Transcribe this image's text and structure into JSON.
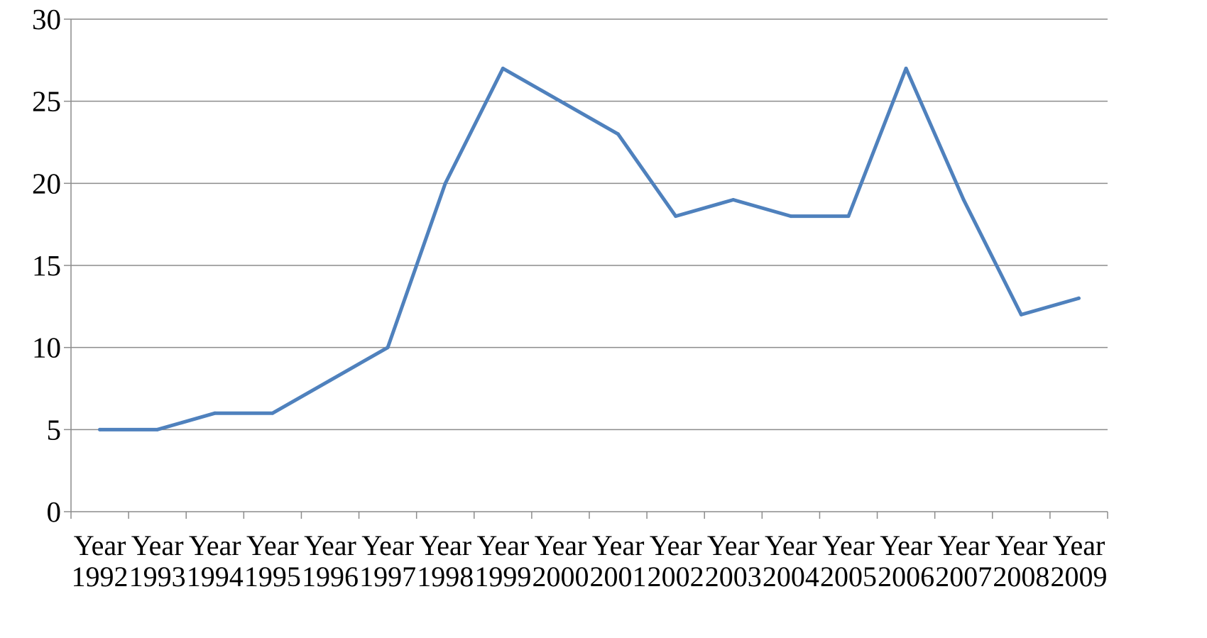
{
  "chart_data": {
    "type": "line",
    "title": "",
    "xlabel": "",
    "ylabel": "",
    "categories": [
      [
        "Year",
        "1992"
      ],
      [
        "Year",
        "1993"
      ],
      [
        "Year",
        "1994"
      ],
      [
        "Year",
        "1995"
      ],
      [
        "Year",
        "1996"
      ],
      [
        "Year",
        "1997"
      ],
      [
        "Year",
        "1998"
      ],
      [
        "Year",
        "1999"
      ],
      [
        "Year",
        "2000"
      ],
      [
        "Year",
        "2001"
      ],
      [
        "Year",
        "2002"
      ],
      [
        "Year",
        "2003"
      ],
      [
        "Year",
        "2004"
      ],
      [
        "Year",
        "2005"
      ],
      [
        "Year",
        "2006"
      ],
      [
        "Year",
        "2007"
      ],
      [
        "Year",
        "2008"
      ],
      [
        "Year",
        "2009"
      ]
    ],
    "series": [
      {
        "values": [
          5,
          5,
          6,
          6,
          8,
          10,
          20,
          27,
          25,
          23,
          18,
          19,
          18,
          18,
          27,
          19,
          12,
          13
        ],
        "color": "#4f81bd"
      }
    ],
    "ylim": [
      0,
      30
    ],
    "yticks": [
      "0",
      "5",
      "10",
      "15",
      "20",
      "25",
      "30"
    ],
    "grid": true,
    "legend": "none"
  }
}
